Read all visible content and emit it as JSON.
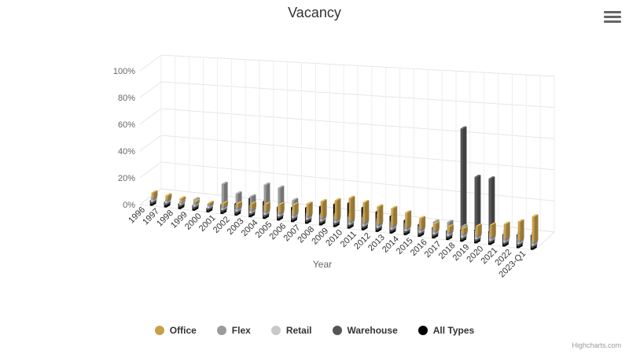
{
  "title": "Vacancy",
  "credits": "Highcharts.com",
  "menu_icon": "hamburger-menu-icon",
  "chart_data": {
    "type": "bar",
    "title": "Vacancy",
    "xlabel": "Year",
    "ylabel": "",
    "three_d": true,
    "grid": true,
    "legend_position": "bottom",
    "ylim": [
      0,
      100
    ],
    "y_ticks": [
      "0%",
      "20%",
      "40%",
      "60%",
      "80%",
      "100%"
    ],
    "categories": [
      "1996",
      "1997",
      "1998",
      "1999",
      "2000",
      "2001",
      "2002",
      "2003",
      "2004",
      "2005",
      "2006",
      "2007",
      "2008",
      "2009",
      "2010",
      "2011",
      "2012",
      "2013",
      "2014",
      "2015",
      "2016",
      "2017",
      "2018",
      "2019",
      "2020",
      "2021",
      "2022",
      "2023-Q1"
    ],
    "series": [
      {
        "name": "Office",
        "color": "#c8a04a",
        "values": [
          4,
          3,
          2,
          1,
          1,
          2,
          3,
          4,
          5,
          6,
          7,
          9,
          12,
          14,
          17,
          15,
          13,
          13,
          11,
          8,
          5,
          4,
          4,
          7,
          9,
          11,
          14,
          19
        ]
      },
      {
        "name": "Flex",
        "color": "#9b9b9b",
        "values": [
          2,
          2,
          1,
          4,
          2,
          18,
          12,
          11,
          21,
          20,
          12,
          8,
          5,
          6,
          7,
          8,
          9,
          8,
          7,
          7,
          8,
          9,
          7,
          7,
          8,
          8,
          8,
          9
        ]
      },
      {
        "name": "Retail",
        "color": "#c8c8c8",
        "values": [
          2,
          2,
          2,
          3,
          3,
          5,
          5,
          6,
          7,
          7,
          6,
          5,
          5,
          5,
          6,
          7,
          7,
          6,
          6,
          5,
          5,
          4,
          5,
          6,
          6,
          7,
          7,
          8
        ]
      },
      {
        "name": "Warehouse",
        "color": "#555555",
        "values": [
          2,
          2,
          1,
          2,
          2,
          3,
          3,
          3,
          4,
          5,
          5,
          4,
          6,
          8,
          7,
          8,
          6,
          5,
          4,
          4,
          5,
          4,
          83,
          48,
          48,
          8,
          7,
          6
        ]
      },
      {
        "name": "All Types",
        "color": "#000000",
        "values": [
          4,
          4,
          4,
          4,
          3,
          7,
          9,
          14,
          13,
          10,
          11,
          12,
          14,
          17,
          19,
          17,
          15,
          13,
          11,
          9,
          8,
          7,
          9,
          10,
          10,
          9,
          10,
          11
        ]
      }
    ]
  }
}
